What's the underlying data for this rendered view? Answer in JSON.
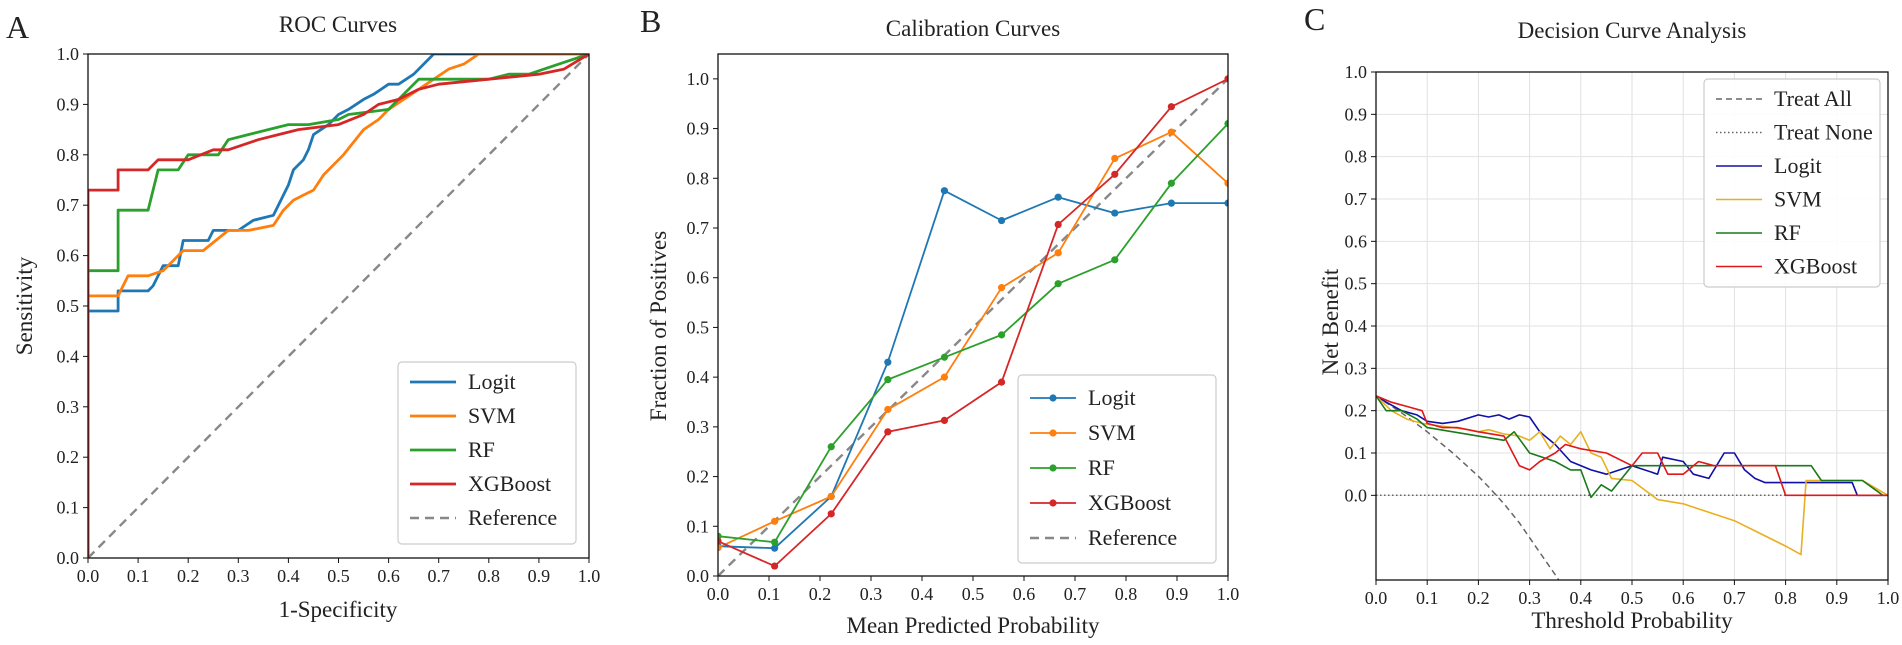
{
  "figure": {
    "colors": {
      "Logit": "#1f77b4",
      "SVM": "#ff7f0e",
      "RF": "#2ca02c",
      "XGBoost": "#d62728",
      "reference": "#888888"
    },
    "dca_colors": {
      "Logit": "#1010a8",
      "SVM": "#e8b020",
      "RF": "#1a7a1a",
      "XGBoost": "#e01818",
      "treat_all": "#666666",
      "treat_none": "#666666"
    }
  },
  "chart_data": [
    {
      "type": "line",
      "panel_label": "A",
      "title": "ROC Curves",
      "xlabel": "1-Specificity",
      "ylabel": "Sensitivity",
      "xlim": [
        0,
        1
      ],
      "ylim": [
        0,
        1
      ],
      "xticks": [
        "0.0",
        "0.1",
        "0.2",
        "0.3",
        "0.4",
        "0.5",
        "0.6",
        "0.7",
        "0.8",
        "0.9",
        "1.0"
      ],
      "yticks": [
        "0.0",
        "0.1",
        "0.2",
        "0.3",
        "0.4",
        "0.5",
        "0.6",
        "0.7",
        "0.8",
        "0.9",
        "1.0"
      ],
      "grid": false,
      "legend_position": "lower-right",
      "series": [
        {
          "name": "Logit",
          "x": [
            0,
            0,
            0.06,
            0.06,
            0.12,
            0.13,
            0.15,
            0.18,
            0.19,
            0.24,
            0.25,
            0.3,
            0.33,
            0.37,
            0.39,
            0.4,
            0.41,
            0.43,
            0.44,
            0.45,
            0.48,
            0.5,
            0.52,
            0.55,
            0.57,
            0.6,
            0.62,
            0.65,
            0.67,
            0.69,
            0.72,
            0.73,
            1.0
          ],
          "y": [
            0,
            0.49,
            0.49,
            0.53,
            0.53,
            0.54,
            0.58,
            0.58,
            0.63,
            0.63,
            0.65,
            0.65,
            0.67,
            0.68,
            0.72,
            0.74,
            0.77,
            0.79,
            0.81,
            0.84,
            0.86,
            0.88,
            0.89,
            0.91,
            0.92,
            0.94,
            0.94,
            0.96,
            0.98,
            1.0,
            1.0,
            1.0,
            1.0
          ]
        },
        {
          "name": "SVM",
          "x": [
            0,
            0,
            0.06,
            0.08,
            0.12,
            0.15,
            0.19,
            0.23,
            0.28,
            0.32,
            0.37,
            0.39,
            0.41,
            0.43,
            0.45,
            0.47,
            0.49,
            0.51,
            0.55,
            0.58,
            0.6,
            0.63,
            0.66,
            0.69,
            0.72,
            0.75,
            0.78,
            0.82,
            1.0
          ],
          "y": [
            0,
            0.52,
            0.52,
            0.56,
            0.56,
            0.57,
            0.61,
            0.61,
            0.65,
            0.65,
            0.66,
            0.69,
            0.71,
            0.72,
            0.73,
            0.76,
            0.78,
            0.8,
            0.85,
            0.87,
            0.89,
            0.91,
            0.93,
            0.95,
            0.97,
            0.98,
            1.0,
            1.0,
            1.0
          ]
        },
        {
          "name": "RF",
          "x": [
            0,
            0,
            0.06,
            0.06,
            0.12,
            0.14,
            0.18,
            0.2,
            0.26,
            0.28,
            0.32,
            0.4,
            0.44,
            0.5,
            0.52,
            0.6,
            0.63,
            0.66,
            0.68,
            0.72,
            0.75,
            0.8,
            0.84,
            0.88,
            0.94,
            1.0
          ],
          "y": [
            0,
            0.57,
            0.57,
            0.69,
            0.69,
            0.77,
            0.77,
            0.8,
            0.8,
            0.83,
            0.84,
            0.86,
            0.86,
            0.87,
            0.88,
            0.89,
            0.92,
            0.95,
            0.95,
            0.95,
            0.95,
            0.95,
            0.96,
            0.96,
            0.98,
            1.0
          ],
          "note": "approximate"
        },
        {
          "name": "XGBoost",
          "x": [
            0,
            0,
            0.06,
            0.06,
            0.12,
            0.14,
            0.2,
            0.25,
            0.28,
            0.34,
            0.38,
            0.42,
            0.5,
            0.55,
            0.58,
            0.62,
            0.66,
            0.7,
            0.8,
            0.9,
            0.95,
            1.0
          ],
          "y": [
            0,
            0.73,
            0.73,
            0.77,
            0.77,
            0.79,
            0.79,
            0.81,
            0.81,
            0.83,
            0.84,
            0.85,
            0.86,
            0.88,
            0.9,
            0.91,
            0.93,
            0.94,
            0.95,
            0.96,
            0.97,
            1.0
          ]
        },
        {
          "name": "Reference",
          "x": [
            0,
            1
          ],
          "y": [
            0,
            1
          ],
          "dashed": true
        }
      ]
    },
    {
      "type": "line",
      "panel_label": "B",
      "title": "Calibration Curves",
      "xlabel": "Mean Predicted Probability",
      "ylabel": "Fraction of Positives",
      "xlim": [
        0,
        1
      ],
      "ylim": [
        0,
        1.05
      ],
      "xticks": [
        "0.0",
        "0.1",
        "0.2",
        "0.3",
        "0.4",
        "0.5",
        "0.6",
        "0.7",
        "0.8",
        "0.9",
        "1.0"
      ],
      "yticks": [
        "0.0",
        "0.1",
        "0.2",
        "0.3",
        "0.4",
        "0.5",
        "0.6",
        "0.7",
        "0.8",
        "0.9",
        "1.0"
      ],
      "grid": false,
      "legend_position": "lower-right",
      "x": [
        0,
        0.111,
        0.222,
        0.333,
        0.444,
        0.556,
        0.667,
        0.778,
        0.889,
        1.0
      ],
      "series": [
        {
          "name": "Logit",
          "x": [
            0,
            0.111,
            0.222,
            0.333,
            0.444,
            0.556,
            0.667,
            0.778,
            0.889,
            1.0
          ],
          "y": [
            0.06,
            0.056,
            0.16,
            0.43,
            0.775,
            0.715,
            0.762,
            0.73,
            0.75,
            0.75
          ],
          "markers": true
        },
        {
          "name": "SVM",
          "x": [
            0,
            0.111,
            0.222,
            0.333,
            0.444,
            0.556,
            0.667,
            0.778,
            0.889,
            1.0
          ],
          "y": [
            0.057,
            0.11,
            0.16,
            0.335,
            0.4,
            0.58,
            0.65,
            0.84,
            0.893,
            0.79
          ],
          "markers": true
        },
        {
          "name": "RF",
          "x": [
            0,
            0.111,
            0.222,
            0.333,
            0.444,
            0.556,
            0.667,
            0.778,
            0.889,
            1.0
          ],
          "y": [
            0.08,
            0.068,
            0.26,
            0.395,
            0.44,
            0.485,
            0.588,
            0.636,
            0.79,
            0.91
          ],
          "markers": true
        },
        {
          "name": "XGBoost",
          "x": [
            0,
            0.111,
            0.222,
            0.333,
            0.444,
            0.556,
            0.667,
            0.778,
            0.889,
            1.0
          ],
          "y": [
            0.07,
            0.02,
            0.125,
            0.29,
            0.313,
            0.39,
            0.707,
            0.808,
            0.944,
            1.0
          ],
          "markers": true
        },
        {
          "name": "Reference",
          "x": [
            0,
            1
          ],
          "y": [
            0,
            1
          ],
          "dashed": true
        }
      ]
    },
    {
      "type": "line",
      "panel_label": "C",
      "title": "Decision Curve Analysis",
      "xlabel": "Threshold Probability",
      "ylabel": "Net Benefit",
      "xlim": [
        0,
        1
      ],
      "ylim": [
        -0.2,
        1.0
      ],
      "xticks": [
        "0.0",
        "0.1",
        "0.2",
        "0.3",
        "0.4",
        "0.5",
        "0.6",
        "0.7",
        "0.8",
        "0.9",
        "1.0"
      ],
      "yticks": [
        "0.0",
        "0.1",
        "0.2",
        "0.3",
        "0.4",
        "0.5",
        "0.6",
        "0.7",
        "0.8",
        "0.9",
        "1.0"
      ],
      "grid": true,
      "legend_position": "upper-right",
      "series": [
        {
          "name": "Treat All",
          "dashed": true,
          "x": [
            0,
            0.05,
            0.1,
            0.15,
            0.2,
            0.22,
            0.25,
            0.28,
            0.3,
            0.32,
            0.34,
            0.36,
            0.365
          ],
          "y": [
            0.235,
            0.195,
            0.15,
            0.1,
            0.045,
            0.02,
            -0.02,
            -0.065,
            -0.1,
            -0.135,
            -0.17,
            -0.205,
            -0.215
          ]
        },
        {
          "name": "Treat None",
          "dotted": true,
          "x": [
            0,
            1
          ],
          "y": [
            0,
            0
          ]
        },
        {
          "name": "Logit",
          "x": [
            0,
            0.02,
            0.05,
            0.08,
            0.1,
            0.13,
            0.16,
            0.2,
            0.22,
            0.24,
            0.26,
            0.28,
            0.3,
            0.32,
            0.35,
            0.38,
            0.42,
            0.45,
            0.5,
            0.55,
            0.56,
            0.6,
            0.62,
            0.65,
            0.68,
            0.7,
            0.72,
            0.74,
            0.76,
            0.78,
            0.8,
            0.85,
            0.9,
            0.93,
            0.94,
            0.96,
            1.0
          ],
          "y": [
            0.235,
            0.22,
            0.2,
            0.19,
            0.175,
            0.17,
            0.175,
            0.19,
            0.185,
            0.19,
            0.18,
            0.19,
            0.185,
            0.15,
            0.12,
            0.08,
            0.06,
            0.05,
            0.07,
            0.05,
            0.09,
            0.08,
            0.05,
            0.04,
            0.1,
            0.1,
            0.06,
            0.04,
            0.03,
            0.03,
            0.03,
            0.03,
            0.03,
            0.03,
            0.0,
            0.0,
            0.0
          ]
        },
        {
          "name": "SVM",
          "x": [
            0,
            0.03,
            0.06,
            0.09,
            0.12,
            0.15,
            0.18,
            0.2,
            0.22,
            0.25,
            0.28,
            0.3,
            0.32,
            0.34,
            0.36,
            0.38,
            0.4,
            0.42,
            0.44,
            0.46,
            0.5,
            0.55,
            0.6,
            0.65,
            0.7,
            0.75,
            0.8,
            0.83,
            0.84,
            0.9,
            0.95,
            1.0
          ],
          "y": [
            0.235,
            0.2,
            0.18,
            0.17,
            0.165,
            0.16,
            0.155,
            0.15,
            0.155,
            0.145,
            0.14,
            0.13,
            0.15,
            0.11,
            0.14,
            0.12,
            0.15,
            0.1,
            0.09,
            0.04,
            0.035,
            -0.01,
            -0.02,
            -0.04,
            -0.06,
            -0.09,
            -0.12,
            -0.14,
            0.035,
            0.035,
            0.035,
            0.0
          ]
        },
        {
          "name": "RF",
          "x": [
            0,
            0.02,
            0.05,
            0.08,
            0.1,
            0.15,
            0.2,
            0.25,
            0.27,
            0.3,
            0.35,
            0.38,
            0.4,
            0.42,
            0.44,
            0.46,
            0.5,
            0.55,
            0.6,
            0.65,
            0.7,
            0.75,
            0.8,
            0.85,
            0.87,
            0.9,
            0.95,
            0.99
          ],
          "y": [
            0.235,
            0.2,
            0.2,
            0.18,
            0.16,
            0.15,
            0.14,
            0.13,
            0.15,
            0.1,
            0.08,
            0.06,
            0.06,
            -0.005,
            0.025,
            0.01,
            0.07,
            0.07,
            0.07,
            0.07,
            0.07,
            0.07,
            0.07,
            0.07,
            0.035,
            0.035,
            0.035,
            0.0
          ]
        },
        {
          "name": "XGBoost",
          "x": [
            0,
            0.03,
            0.06,
            0.09,
            0.1,
            0.13,
            0.16,
            0.2,
            0.25,
            0.28,
            0.3,
            0.32,
            0.35,
            0.37,
            0.4,
            0.45,
            0.5,
            0.52,
            0.55,
            0.57,
            0.6,
            0.63,
            0.66,
            0.7,
            0.75,
            0.78,
            0.8,
            0.85,
            0.9,
            0.95,
            1.0
          ],
          "y": [
            0.235,
            0.22,
            0.21,
            0.2,
            0.17,
            0.16,
            0.16,
            0.15,
            0.14,
            0.07,
            0.06,
            0.08,
            0.1,
            0.12,
            0.11,
            0.1,
            0.07,
            0.1,
            0.1,
            0.05,
            0.05,
            0.08,
            0.07,
            0.07,
            0.07,
            0.07,
            0.0,
            0.0,
            0.0,
            0.0,
            0.0
          ]
        }
      ]
    }
  ]
}
